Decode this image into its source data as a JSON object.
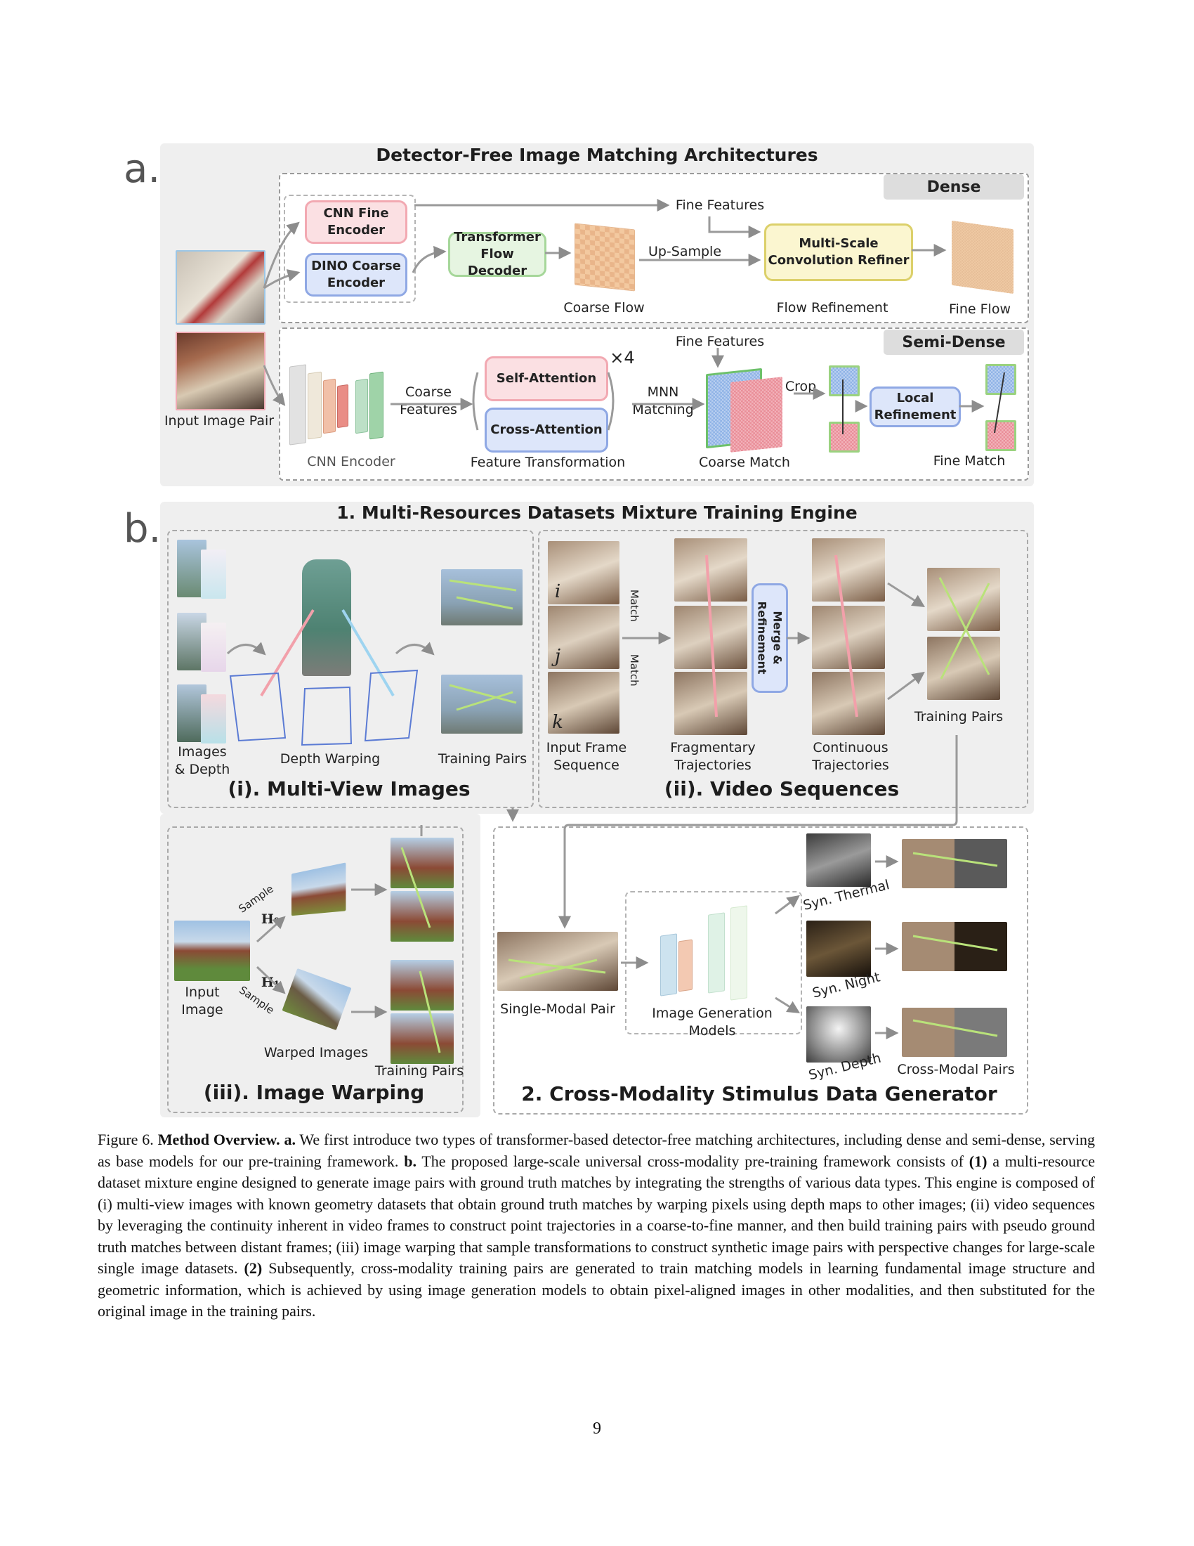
{
  "part_a": {
    "letter": "a.",
    "title": "Detector-Free Image Matching Architectures",
    "input_label": "Input Image Pair",
    "dense": {
      "tag": "Dense",
      "cnn_fine_encoder": "CNN Fine\nEncoder",
      "dino_coarse_encoder": "DINO Coarse\nEncoder",
      "transformer_flow_decoder": "Transformer\nFlow Decoder",
      "coarse_flow": "Coarse Flow",
      "up_sample": "Up-Sample",
      "fine_features": "Fine Features",
      "refiner": "Multi-Scale\nConvolution Refiner",
      "flow_refinement": "Flow Refinement",
      "fine_flow": "Fine Flow"
    },
    "semi_dense": {
      "tag": "Semi-Dense",
      "cnn_encoder": "CNN Encoder",
      "coarse_features": "Coarse\nFeatures",
      "self_attention": "Self-Attention",
      "cross_attention": "Cross-Attention",
      "times4": "×4",
      "feature_transformation": "Feature Transformation",
      "mnn_matching": "MNN\nMatching",
      "fine_features": "Fine Features",
      "crop": "Crop",
      "coarse_match": "Coarse Match",
      "local_refinement": "Local\nRefinement",
      "fine_match": "Fine Match"
    }
  },
  "part_b": {
    "letter": "b.",
    "engine_title": "1. Multi-Resources Datasets Mixture Training Engine",
    "multiview": {
      "title": "(i). Multi-View Images",
      "images_depth": "Images\n& Depth",
      "depth_warping": "Depth Warping",
      "training_pairs": "Training Pairs"
    },
    "video": {
      "title": "(ii). Video Sequences",
      "input_frame_sequence": "Input Frame\nSequence",
      "fragmentary_trajectories": "Fragmentary\nTrajectories",
      "merge_refinement": "Merge &\nRefinement",
      "continuous_trajectories": "Continuous\nTrajectories",
      "training_pairs": "Training Pairs",
      "match": "Match",
      "frame_i": "i",
      "frame_j": "j",
      "frame_k": "k"
    },
    "warping": {
      "title": "(iii). Image Warping",
      "input_image": "Input\nImage",
      "sample": "Sample",
      "h0": "H₀",
      "h1": "H₁",
      "warped_images": "Warped Images",
      "training_pairs": "Training Pairs"
    },
    "cross_modality": {
      "title": "2. Cross-Modality Stimulus Data Generator",
      "single_modal_pair": "Single-Modal Pair",
      "image_generation_models": "Image Generation Models",
      "syn_thermal": "Syn. Thermal",
      "syn_night": "Syn. Night",
      "syn_depth": "Syn. Depth",
      "cross_modal_pairs": "Cross-Modal Pairs"
    }
  },
  "caption": {
    "figure_label": "Figure 6.",
    "bold_title": "Method Overview.",
    "a_label": "a.",
    "a_text": "We first introduce two types of transformer-based detector-free matching architectures, including dense and semi-dense, serving as base models for our pre-training framework.",
    "b_label": "b.",
    "b_text1": "The proposed large-scale universal cross-modality pre-training framework consists of",
    "one_label": "(1)",
    "b_text2": "a multi-resource dataset mixture engine designed to generate image pairs with ground truth matches by integrating the strengths of various data types. This engine is composed of (i) multi-view images with known geometry datasets that obtain ground truth matches by warping pixels using depth maps to other images; (ii) video sequences by leveraging the continuity inherent in video frames to construct point trajectories in a coarse-to-fine manner, and then build training pairs with pseudo ground truth matches between distant frames; (iii) image warping that sample transformations to construct synthetic image pairs with perspective changes for large-scale single image datasets.",
    "two_label": "(2)",
    "b_text3": "Subsequently, cross-modality training pairs are generated to train matching models in learning fundamental image structure and geometric information, which is achieved by using image generation models to obtain pixel-aligned images in other modalities, and then substituted for the original image in the training pairs."
  },
  "page_number": "9",
  "colors": {
    "pink": "#fbe0e3",
    "blue": "#dde6fa",
    "green": "#e6f5e1",
    "yellow": "#fbf6d0",
    "panel": "#efefef"
  }
}
